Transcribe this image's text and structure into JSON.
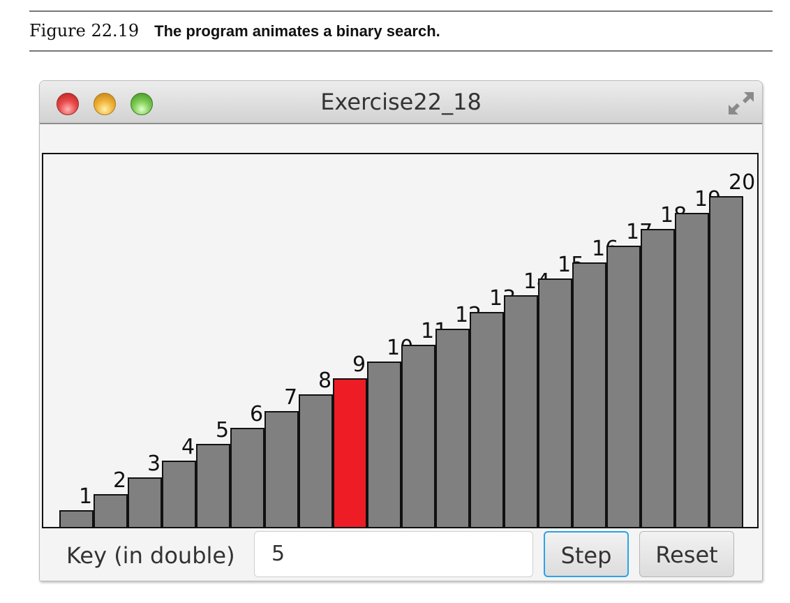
{
  "figure": {
    "number": "Figure 22.19",
    "caption": "The program animates a binary search."
  },
  "window": {
    "title": "Exercise22_18",
    "controls": [
      "close-button",
      "minimize-button",
      "zoom-button"
    ],
    "fullscreen_icon": "fullscreen-arrows-icon"
  },
  "controls": {
    "key_label": "Key (in double)",
    "key_value": "5",
    "step_label": "Step",
    "reset_label": "Reset"
  },
  "colors": {
    "bar": "#808080",
    "highlight": "#ee1c25",
    "focus_border": "#2aa3e6"
  },
  "chart_data": {
    "type": "bar",
    "title": "",
    "categories": [
      "1",
      "2",
      "3",
      "4",
      "5",
      "6",
      "7",
      "8",
      "9",
      "10",
      "11",
      "12",
      "13",
      "14",
      "15",
      "16",
      "17",
      "18",
      "19",
      "20"
    ],
    "values": [
      1,
      2,
      3,
      4,
      5,
      6,
      7,
      8,
      9,
      10,
      11,
      12,
      13,
      14,
      15,
      16,
      17,
      18,
      19,
      20
    ],
    "highlighted_index": 8,
    "highlighted_value": 9,
    "xlabel": "",
    "ylabel": "",
    "grid": false,
    "legend": "none"
  }
}
